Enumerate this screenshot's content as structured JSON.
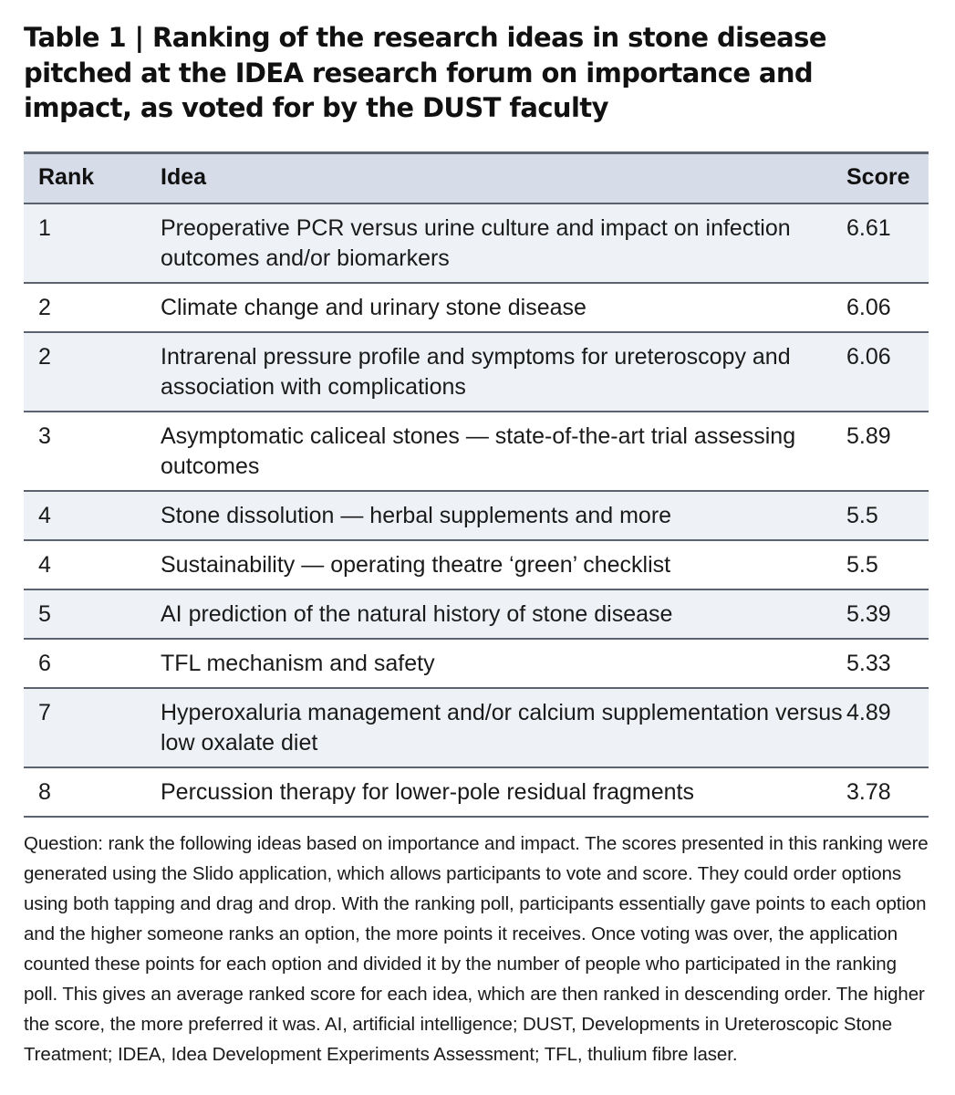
{
  "caption": {
    "title": "Table 1 | Ranking of the research ideas in stone disease pitched at the IDEA research forum on importance and impact, as voted for by the DUST faculty"
  },
  "table": {
    "headers": {
      "rank": "Rank",
      "idea": "Idea",
      "score": "Score"
    },
    "rows": [
      {
        "rank": "1",
        "idea": "Preoperative PCR versus urine culture and impact on infection outcomes and/or biomarkers",
        "score": "6.61"
      },
      {
        "rank": "2",
        "idea": "Climate change and urinary stone disease",
        "score": "6.06"
      },
      {
        "rank": "2",
        "idea": "Intrarenal pressure profile and symptoms for ureteroscopy and association with complications",
        "score": "6.06"
      },
      {
        "rank": "3",
        "idea": "Asymptomatic caliceal stones — state-of-the-art trial assessing outcomes",
        "score": "5.89"
      },
      {
        "rank": "4",
        "idea": "Stone dissolution — herbal supplements and more",
        "score": "5.5"
      },
      {
        "rank": "4",
        "idea": "Sustainability — operating theatre ‘green’ checklist",
        "score": "5.5"
      },
      {
        "rank": "5",
        "idea": "AI prediction of the natural history of stone disease",
        "score": "5.39"
      },
      {
        "rank": "6",
        "idea": "TFL mechanism and safety",
        "score": "5.33"
      },
      {
        "rank": "7",
        "idea": "Hyperoxaluria management and/or calcium supplementation versus low oxalate diet",
        "score": "4.89"
      },
      {
        "rank": "8",
        "idea": "Percussion therapy for lower-pole residual fragments",
        "score": "3.78"
      }
    ]
  },
  "footnote": "Question: rank the following ideas based on importance and impact. The scores presented in this ranking were generated using the Slido application, which allows participants to vote and score. They could order options using both tapping and drag and drop. With the ranking poll, participants essentially gave points to each option and the higher someone ranks an option, the more points it receives. Once voting was over, the application counted these points for each option and divided it by the number of people who participated in the ranking poll. This gives an average ranked score for each idea, which are then ranked in descending order. The higher the score, the more preferred it was. AI, artificial intelligence; DUST, Developments in Ureteroscopic Stone Treatment; IDEA, Idea Development Experiments Assessment; TFL, thulium fibre laser.",
  "colors": {
    "header_bg": "#d6dce8",
    "shaded_row_bg": "#eef1f6",
    "rule": "#5c6370"
  }
}
